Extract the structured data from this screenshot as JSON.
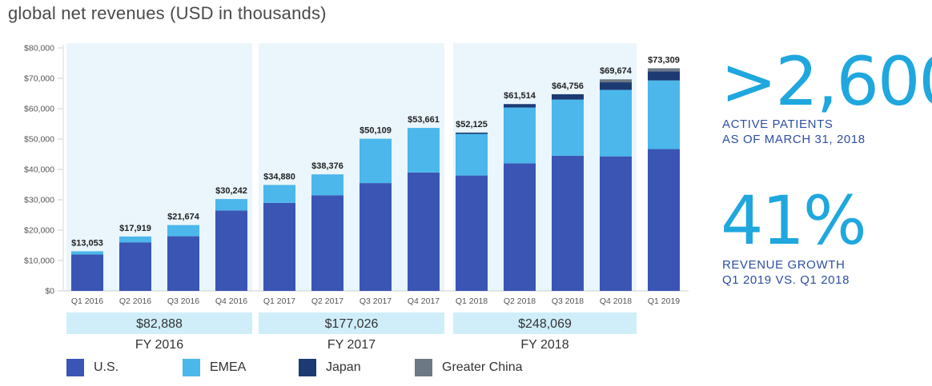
{
  "title": "global net revenues (USD in thousands)",
  "stats": [
    {
      "value": ">2,600",
      "caption_line1": "ACTIVE PATIENTS",
      "caption_line2": "AS OF MARCH 31, 2018"
    },
    {
      "value": "41%",
      "caption_line1": "REVENUE GROWTH",
      "caption_line2": "Q1 2019 VS. Q1 2018"
    }
  ],
  "colors": {
    "us": "#3a55b4",
    "emea": "#4bb7ea",
    "japan": "#1d3a73",
    "greater_china": "#6d7885",
    "panel": "#eaf5fc",
    "fy_box": "#cfeefa",
    "stat": "#1fa7de"
  },
  "chart_data": {
    "type": "bar",
    "stacked": true,
    "title": "global net revenues (USD in thousands)",
    "ylim": [
      0,
      80000
    ],
    "yticks": [
      0,
      10000,
      20000,
      30000,
      40000,
      50000,
      60000,
      70000,
      80000
    ],
    "ytick_labels": [
      "$0",
      "$10,000",
      "$20,000",
      "$30,000",
      "$40,000",
      "$50,000",
      "$60,000",
      "$70,000",
      "$80,000"
    ],
    "categories": [
      "Q1 2016",
      "Q2 2016",
      "Q3 2016",
      "Q4 2016",
      "Q1 2017",
      "Q2 2017",
      "Q3 2017",
      "Q4 2017",
      "Q1 2018",
      "Q2 2018",
      "Q3 2018",
      "Q4 2018",
      "Q1 2019"
    ],
    "totals": [
      "$13,053",
      "$17,919",
      "$21,674",
      "$30,242",
      "$34,880",
      "$38,376",
      "$50,109",
      "$53,661",
      "$52,125",
      "$61,514",
      "$64,756",
      "$69,674",
      "$73,309"
    ],
    "series": [
      {
        "name": "U.S.",
        "key": "us",
        "values": [
          12000,
          16000,
          18000,
          26500,
          29000,
          31500,
          35500,
          39000,
          38000,
          42000,
          44500,
          44300,
          46700
        ]
      },
      {
        "name": "EMEA",
        "key": "emea",
        "values": [
          1053,
          1919,
          3674,
          3742,
          5880,
          6876,
          14609,
          14661,
          13700,
          18400,
          18500,
          21900,
          22600
        ]
      },
      {
        "name": "Japan",
        "key": "japan",
        "values": [
          0,
          0,
          0,
          0,
          0,
          0,
          0,
          0,
          425,
          1114,
          1756,
          2474,
          3009
        ]
      },
      {
        "name": "Greater China",
        "key": "greater_china",
        "values": [
          0,
          0,
          0,
          0,
          0,
          0,
          0,
          0,
          0,
          0,
          0,
          1000,
          1000
        ]
      }
    ],
    "fiscal_years": [
      {
        "label": "FY 2016",
        "total": "$82,888",
        "quarters": [
          0,
          3
        ]
      },
      {
        "label": "FY 2017",
        "total": "$177,026",
        "quarters": [
          4,
          7
        ]
      },
      {
        "label": "FY 2018",
        "total": "$248,069",
        "quarters": [
          8,
          11
        ]
      }
    ]
  }
}
